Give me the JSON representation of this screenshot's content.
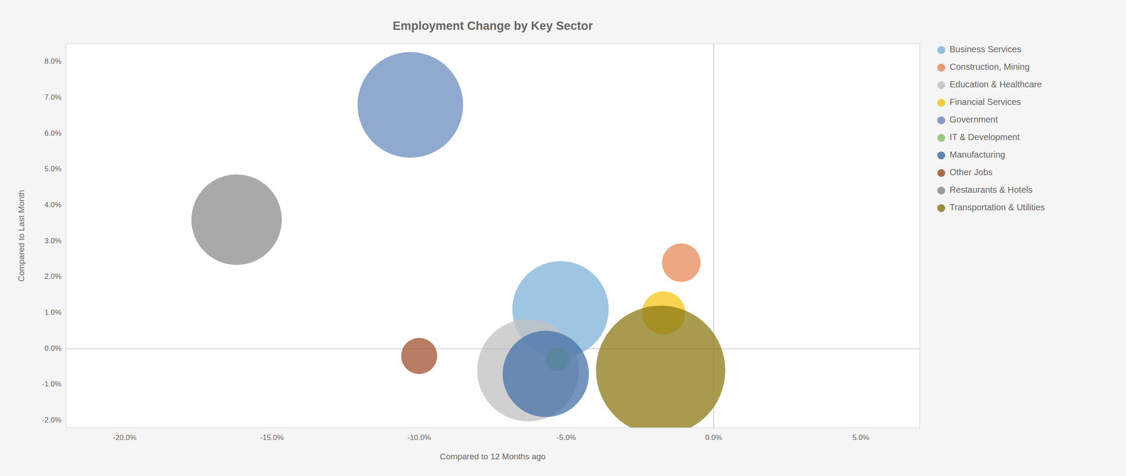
{
  "chart_data": {
    "type": "scatter",
    "title": "Employment Change by Key Sector",
    "x_label": "Compared to 12 Months ago",
    "y_label": "Compared to Last Month",
    "xlim": [
      -0.22,
      0.07
    ],
    "ylim": [
      -0.022,
      0.085
    ],
    "xticks": [
      {
        "value": -0.2,
        "label": "-20.0%"
      },
      {
        "value": -0.15,
        "label": "-15.0%"
      },
      {
        "value": -0.1,
        "label": "-10.0%"
      },
      {
        "value": -0.05,
        "label": "-5.0%"
      },
      {
        "value": 0.0,
        "label": "0.0%"
      },
      {
        "value": 0.05,
        "label": "5.0%"
      }
    ],
    "yticks": [
      {
        "value": -0.02,
        "label": "-2.0%"
      },
      {
        "value": -0.01,
        "label": "-1.0%"
      },
      {
        "value": 0.0,
        "label": "0.0%"
      },
      {
        "value": 0.01,
        "label": "1.0%"
      },
      {
        "value": 0.02,
        "label": "2.0%"
      },
      {
        "value": 0.03,
        "label": "3.0%"
      },
      {
        "value": 0.04,
        "label": "4.0%"
      },
      {
        "value": 0.05,
        "label": "5.0%"
      },
      {
        "value": 0.06,
        "label": "6.0%"
      },
      {
        "value": 0.07,
        "label": "7.0%"
      },
      {
        "value": 0.08,
        "label": "8.0%"
      }
    ],
    "grid": false,
    "legend": "right",
    "marker": "circle",
    "series": [
      {
        "name": "Business Services",
        "color": "#7eb3d8",
        "x": [
          -0.052
        ],
        "values": [
          0.011
        ],
        "size": [
          25000
        ]
      },
      {
        "name": "Construction, Mining",
        "color": "#e8895a",
        "x": [
          -0.011
        ],
        "values": [
          0.024
        ],
        "size": [
          4000
        ]
      },
      {
        "name": "Education & Healthcare",
        "color": "#c0c0c0",
        "x": [
          -0.063
        ],
        "values": [
          -0.006
        ],
        "size": [
          28000
        ]
      },
      {
        "name": "Financial Services",
        "color": "#f5c518",
        "x": [
          -0.017
        ],
        "values": [
          0.01
        ],
        "size": [
          5000
        ]
      },
      {
        "name": "Government",
        "color": "#6b8cbf",
        "x": [
          -0.103
        ],
        "values": [
          0.068
        ],
        "size": [
          30000
        ]
      },
      {
        "name": "IT & Development",
        "color": "#8bbf6b",
        "x": [
          -0.053
        ],
        "values": [
          -0.003
        ],
        "size": [
          1500
        ]
      },
      {
        "name": "Manufacturing",
        "color": "#4472a8",
        "x": [
          -0.057
        ],
        "values": [
          -0.007
        ],
        "size": [
          20000
        ]
      },
      {
        "name": "Other Jobs",
        "color": "#a0522d",
        "x": [
          -0.1
        ],
        "values": [
          -0.002
        ],
        "size": [
          3500
        ]
      },
      {
        "name": "Restaurants & Hotels",
        "color": "#8c8c8c",
        "x": [
          -0.162
        ],
        "values": [
          0.036
        ],
        "size": [
          22000
        ]
      },
      {
        "name": "Transportation & Utilities",
        "color": "#8b7a14",
        "x": [
          -0.018
        ],
        "values": [
          -0.006
        ],
        "size": [
          45000
        ]
      }
    ]
  }
}
